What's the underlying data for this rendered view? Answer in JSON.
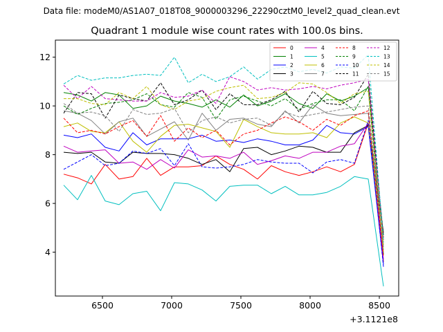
{
  "chart_data": {
    "type": "line",
    "header": "Data file: modeM0/AS1A07_018T08_9000003296_22290cztM0_level2_quad_clean.evt",
    "title": "Quadrant 1 module wise count rates with 100.0s bins.",
    "xlabel": "",
    "ylabel": "",
    "offset_label": "+3.1121e8",
    "xlim": [
      6160,
      8640
    ],
    "ylim": [
      2.2,
      12.7
    ],
    "xticks": [
      6500,
      7000,
      7500,
      8000,
      8500
    ],
    "xtick_labels": [
      "6500",
      "7000",
      "7500",
      "8000",
      "8500"
    ],
    "yticks": [
      4,
      6,
      8,
      10,
      12
    ],
    "ytick_labels": [
      "4",
      "6",
      "8",
      "10",
      "12"
    ],
    "grid": false,
    "legend_position": "top-right",
    "x": [
      6220,
      6320,
      6420,
      6520,
      6620,
      6720,
      6820,
      6920,
      7020,
      7120,
      7220,
      7320,
      7420,
      7520,
      7620,
      7720,
      7820,
      7920,
      8020,
      8120,
      8220,
      8320,
      8420,
      8530
    ],
    "series": [
      {
        "name": "0",
        "color": "#ff0000",
        "dash": "solid",
        "values": [
          7.2,
          7.05,
          6.8,
          7.6,
          7.0,
          7.1,
          7.85,
          7.15,
          7.5,
          7.5,
          7.55,
          7.95,
          7.6,
          7.4,
          7.0,
          7.55,
          7.3,
          7.15,
          7.3,
          7.5,
          7.3,
          7.6,
          9.3,
          3.6
        ]
      },
      {
        "name": "1",
        "color": "#008000",
        "dash": "solid",
        "values": [
          10.55,
          10.45,
          10.2,
          10.55,
          10.45,
          9.9,
          10.0,
          10.4,
          10.2,
          10.1,
          9.95,
          10.25,
          9.95,
          10.45,
          10.0,
          10.2,
          10.5,
          10.1,
          9.9,
          10.5,
          10.2,
          10.4,
          10.75,
          3.9
        ]
      },
      {
        "name": "2",
        "color": "#0000ff",
        "dash": "solid",
        "values": [
          8.8,
          8.7,
          8.85,
          8.3,
          8.15,
          8.9,
          8.4,
          8.65,
          8.65,
          8.65,
          8.8,
          8.55,
          8.6,
          8.5,
          8.65,
          8.55,
          8.4,
          8.4,
          8.6,
          9.2,
          8.9,
          8.85,
          9.15,
          3.5
        ]
      },
      {
        "name": "3",
        "color": "#000000",
        "dash": "solid",
        "values": [
          8.1,
          8.05,
          8.1,
          7.7,
          7.65,
          8.1,
          8.05,
          8.05,
          8.0,
          7.85,
          7.6,
          7.8,
          7.3,
          8.25,
          8.3,
          8.0,
          8.15,
          8.35,
          8.3,
          8.1,
          8.1,
          8.9,
          9.2,
          4.8
        ]
      },
      {
        "name": "4",
        "color": "#bf00bf",
        "dash": "solid",
        "values": [
          8.35,
          8.1,
          8.15,
          8.2,
          7.65,
          7.7,
          7.4,
          7.8,
          7.45,
          8.2,
          7.9,
          7.95,
          7.85,
          8.1,
          7.6,
          7.75,
          7.95,
          7.85,
          8.1,
          8.1,
          8.35,
          8.45,
          9.3,
          3.7
        ]
      },
      {
        "name": "5",
        "color": "#00bfbf",
        "dash": "solid",
        "values": [
          6.75,
          6.15,
          7.15,
          6.1,
          5.95,
          6.4,
          6.5,
          5.7,
          6.85,
          6.8,
          6.55,
          6.1,
          6.7,
          6.75,
          6.75,
          6.4,
          6.7,
          6.35,
          6.35,
          6.45,
          6.7,
          7.1,
          7.0,
          2.6
        ]
      },
      {
        "name": "6",
        "color": "#bfbf00",
        "dash": "solid",
        "values": [
          9.15,
          9.3,
          8.95,
          8.9,
          9.35,
          8.55,
          8.1,
          8.75,
          9.2,
          9.25,
          9.1,
          8.95,
          8.3,
          9.45,
          9.15,
          8.9,
          8.85,
          8.85,
          8.9,
          8.7,
          9.3,
          9.55,
          9.3,
          4.0
        ]
      },
      {
        "name": "7",
        "color": "#808080",
        "dash": "solid",
        "values": [
          9.8,
          9.7,
          9.4,
          8.85,
          9.35,
          9.5,
          8.75,
          9.05,
          9.35,
          8.6,
          9.7,
          9.0,
          9.45,
          9.5,
          9.25,
          9.15,
          9.8,
          9.3,
          10.05,
          9.7,
          9.6,
          9.65,
          9.7,
          4.2
        ]
      },
      {
        "name": "8",
        "color": "#ff0000",
        "dash": "dashed",
        "values": [
          9.5,
          8.9,
          9.0,
          8.85,
          9.15,
          9.4,
          8.75,
          9.6,
          8.55,
          9.1,
          8.7,
          9.0,
          8.4,
          8.85,
          9.0,
          9.3,
          9.55,
          9.35,
          9.0,
          9.45,
          9.2,
          9.6,
          9.8,
          3.8
        ]
      },
      {
        "name": "9",
        "color": "#008000",
        "dash": "dashed",
        "values": [
          10.0,
          9.65,
          9.9,
          10.1,
          10.15,
          10.25,
          10.5,
          10.05,
          9.95,
          10.55,
          10.35,
          9.45,
          10.25,
          10.4,
          10.2,
          10.0,
          10.3,
          9.85,
          10.1,
          10.25,
          10.25,
          9.8,
          10.8,
          4.7
        ]
      },
      {
        "name": "10",
        "color": "#0000ff",
        "dash": "dashed",
        "values": [
          7.4,
          7.7,
          8.0,
          7.55,
          7.65,
          8.15,
          8.05,
          8.25,
          7.55,
          8.45,
          7.5,
          7.45,
          7.5,
          7.6,
          7.8,
          7.7,
          7.65,
          7.65,
          7.25,
          7.7,
          7.8,
          7.65,
          9.4,
          3.4
        ]
      },
      {
        "name": "11",
        "color": "#000000",
        "dash": "dashed",
        "values": [
          9.7,
          10.55,
          10.5,
          9.5,
          10.45,
          10.3,
          10.2,
          10.95,
          10.05,
          10.25,
          10.65,
          9.85,
          10.5,
          10.05,
          10.05,
          10.25,
          10.6,
          9.75,
          10.6,
          10.1,
          10.05,
          10.35,
          11.3,
          4.6
        ]
      },
      {
        "name": "12",
        "color": "#bf00bf",
        "dash": "dashed",
        "values": [
          10.85,
          10.3,
          10.8,
          10.3,
          10.25,
          10.2,
          10.2,
          10.55,
          10.35,
          10.4,
          10.65,
          10.1,
          11.2,
          11.0,
          10.65,
          10.75,
          10.65,
          10.7,
          10.8,
          10.7,
          10.85,
          10.95,
          11.1,
          4.5
        ]
      },
      {
        "name": "13",
        "color": "#00bfbf",
        "dash": "dashed",
        "values": [
          10.9,
          11.25,
          11.05,
          11.15,
          11.15,
          11.25,
          11.3,
          11.25,
          12.0,
          10.95,
          11.3,
          11.0,
          11.2,
          11.6,
          11.1,
          11.5,
          11.6,
          11.4,
          11.5,
          11.35,
          11.6,
          11.55,
          12.1,
          4.4
        ]
      },
      {
        "name": "14",
        "color": "#bfbf00",
        "dash": "dashed",
        "values": [
          10.3,
          10.3,
          10.1,
          10.05,
          10.55,
          10.3,
          10.8,
          10.05,
          9.85,
          10.2,
          10.3,
          10.6,
          10.75,
          10.85,
          10.3,
          10.35,
          10.55,
          10.95,
          10.9,
          10.55,
          10.1,
          10.5,
          10.6,
          4.3
        ]
      },
      {
        "name": "15",
        "color": "#808080",
        "dash": "dashed",
        "values": [
          10.1,
          9.7,
          9.75,
          9.6,
          8.95,
          9.85,
          9.65,
          9.7,
          9.9,
          8.9,
          9.4,
          9.55,
          9.3,
          9.45,
          9.5,
          9.2,
          9.75,
          9.55,
          9.65,
          9.75,
          9.85,
          9.95,
          10.0,
          4.1
        ]
      }
    ]
  }
}
